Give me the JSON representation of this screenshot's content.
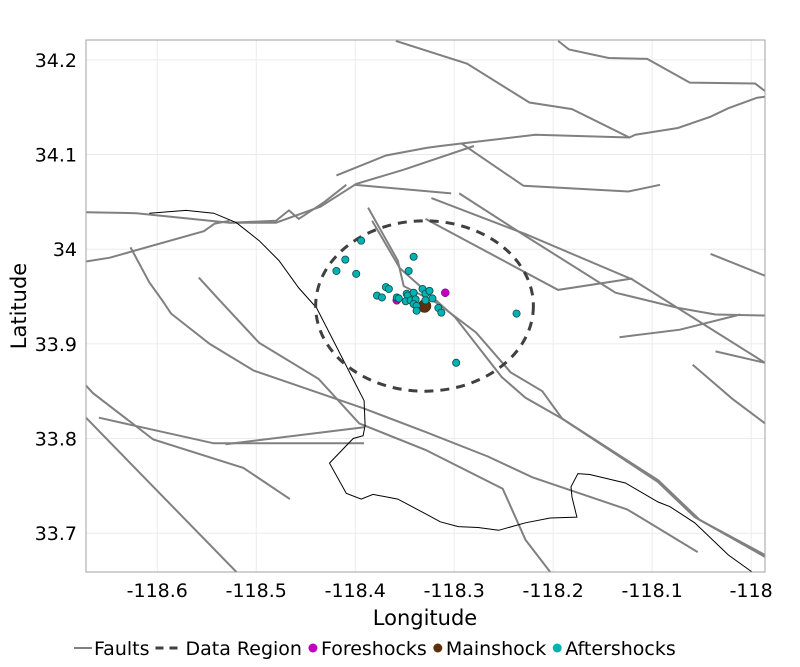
{
  "chart_data": {
    "type": "scatter",
    "xlabel": "Longitude",
    "ylabel": "Latitude",
    "xlim": [
      -118.672,
      -117.986
    ],
    "ylim": [
      33.659,
      34.221
    ],
    "x_ticks": [
      "-118.6",
      "-118.5",
      "-118.4",
      "-118.3",
      "-118.2",
      "-118.1",
      "-118"
    ],
    "x_tick_values": [
      -118.6,
      -118.5,
      -118.4,
      -118.3,
      -118.2,
      -118.1,
      -118.0
    ],
    "y_ticks": [
      "34.2",
      "34.1",
      "34",
      "33.9",
      "33.8",
      "33.7"
    ],
    "y_tick_values": [
      34.2,
      34.1,
      34.0,
      33.9,
      33.8,
      33.7
    ],
    "grid": true,
    "legend_position": "bottom",
    "legend": [
      {
        "label": "Faults",
        "kind": "line",
        "color": "#808080"
      },
      {
        "label": "Data Region",
        "kind": "dashed",
        "color": "#404040"
      },
      {
        "label": "Foreshocks",
        "kind": "point",
        "color": "#bf00bf"
      },
      {
        "label": "Mainshock",
        "kind": "point",
        "color": "#5c300c"
      },
      {
        "label": "Aftershocks",
        "kind": "point",
        "color": "#00b2b2"
      }
    ],
    "faults": [
      [
        [
          -118.359,
          34.22
        ],
        [
          -118.287,
          34.196
        ],
        [
          -118.224,
          34.155
        ],
        [
          -118.181,
          34.148
        ],
        [
          -118.123,
          34.118
        ]
      ],
      [
        [
          -118.195,
          34.22
        ],
        [
          -118.184,
          34.211
        ],
        [
          -118.144,
          34.202
        ],
        [
          -118.105,
          34.201
        ],
        [
          -118.062,
          34.176
        ],
        [
          -117.996,
          34.175
        ],
        [
          -117.986,
          34.167
        ]
      ],
      [
        [
          -118.419,
          34.078
        ],
        [
          -118.369,
          34.099
        ],
        [
          -118.328,
          34.107
        ],
        [
          -118.314,
          34.109
        ],
        [
          -118.218,
          34.121
        ],
        [
          -118.123,
          34.118
        ],
        [
          -118.117,
          34.121
        ],
        [
          -118.074,
          34.128
        ],
        [
          -118.041,
          34.14
        ],
        [
          -118.023,
          34.149
        ],
        [
          -117.994,
          34.16
        ],
        [
          -117.986,
          34.161
        ]
      ],
      [
        [
          -118.351,
          34.084
        ],
        [
          -118.28,
          34.109
        ]
      ],
      [
        [
          -118.293,
          34.112
        ],
        [
          -118.23,
          34.067
        ],
        [
          -118.124,
          34.061
        ],
        [
          -118.092,
          34.068
        ]
      ],
      [
        [
          -118.672,
          34.039
        ],
        [
          -118.621,
          34.038
        ],
        [
          -118.527,
          34.028
        ],
        [
          -118.48,
          34.03
        ],
        [
          -118.467,
          34.041
        ],
        [
          -118.457,
          34.032
        ],
        [
          -118.431,
          34.05
        ],
        [
          -118.409,
          34.068
        ]
      ],
      [
        [
          -118.527,
          34.028
        ],
        [
          -118.48,
          34.028
        ],
        [
          -118.435,
          34.045
        ],
        [
          -118.399,
          34.069
        ],
        [
          -118.351,
          34.084
        ]
      ],
      [
        [
          -118.401,
          34.068
        ],
        [
          -118.303,
          34.059
        ]
      ],
      [
        [
          -118.672,
          33.987
        ],
        [
          -118.648,
          33.991
        ],
        [
          -118.553,
          34.019
        ],
        [
          -118.542,
          34.027
        ],
        [
          -118.527,
          34.03
        ]
      ],
      [
        [
          -118.323,
          34.054
        ],
        [
          -118.228,
          34.016
        ],
        [
          -118.12,
          33.968
        ],
        [
          -117.986,
          33.88
        ]
      ],
      [
        [
          -118.295,
          34.059
        ],
        [
          -118.231,
          34.016
        ],
        [
          -118.137,
          33.954
        ],
        [
          -118.074,
          33.938
        ],
        [
          -118.036,
          33.931
        ],
        [
          -117.986,
          33.93
        ]
      ],
      [
        [
          -118.329,
          34.032
        ],
        [
          -118.195,
          33.957
        ],
        [
          -118.12,
          33.969
        ]
      ],
      [
        [
          -118.041,
          33.995
        ],
        [
          -117.986,
          33.972
        ]
      ],
      [
        [
          -118.133,
          33.907
        ],
        [
          -118.072,
          33.915
        ],
        [
          -118.011,
          33.931
        ]
      ],
      [
        [
          -118.036,
          33.892
        ],
        [
          -117.986,
          33.88
        ]
      ],
      [
        [
          -118.059,
          33.878
        ],
        [
          -118.019,
          33.842
        ],
        [
          -117.986,
          33.816
        ]
      ],
      [
        [
          -118.387,
          34.044
        ],
        [
          -118.357,
          33.988
        ],
        [
          -118.351,
          33.961
        ],
        [
          -118.317,
          33.943
        ],
        [
          -118.278,
          33.912
        ],
        [
          -118.243,
          33.87
        ],
        [
          -118.211,
          33.85
        ],
        [
          -118.191,
          33.821
        ],
        [
          -118.094,
          33.754
        ],
        [
          -118.057,
          33.717
        ],
        [
          -117.986,
          33.675
        ]
      ],
      [
        [
          -118.383,
          34.03
        ],
        [
          -118.355,
          33.98
        ],
        [
          -118.299,
          33.928
        ],
        [
          -118.252,
          33.865
        ],
        [
          -118.228,
          33.843
        ],
        [
          -118.191,
          33.821
        ],
        [
          -118.094,
          33.756
        ],
        [
          -118.052,
          33.714
        ],
        [
          -117.986,
          33.677
        ]
      ],
      [
        [
          -118.627,
          34.002
        ],
        [
          -118.608,
          33.965
        ],
        [
          -118.595,
          33.946
        ],
        [
          -118.586,
          33.932
        ],
        [
          -118.547,
          33.9
        ],
        [
          -118.503,
          33.872
        ],
        [
          -118.392,
          33.832
        ],
        [
          -118.329,
          33.807
        ],
        [
          -118.266,
          33.781
        ],
        [
          -118.221,
          33.759
        ],
        [
          -118.125,
          33.725
        ],
        [
          -118.054,
          33.68
        ]
      ],
      [
        [
          -118.558,
          33.97
        ],
        [
          -118.537,
          33.946
        ],
        [
          -118.497,
          33.901
        ],
        [
          -118.437,
          33.863
        ],
        [
          -118.396,
          33.816
        ],
        [
          -118.329,
          33.788
        ],
        [
          -118.251,
          33.747
        ],
        [
          -118.228,
          33.693
        ],
        [
          -118.203,
          33.659
        ]
      ],
      [
        [
          -118.672,
          33.856
        ],
        [
          -118.665,
          33.848
        ],
        [
          -118.604,
          33.799
        ],
        [
          -118.513,
          33.769
        ],
        [
          -118.466,
          33.736
        ]
      ],
      [
        [
          -118.659,
          33.822
        ],
        [
          -118.543,
          33.795
        ],
        [
          -118.391,
          33.795
        ]
      ],
      [
        [
          -118.531,
          33.794
        ],
        [
          -118.391,
          33.812
        ]
      ],
      [
        [
          -118.672,
          33.822
        ],
        [
          -118.52,
          33.659
        ]
      ]
    ],
    "coastline": [
      [
        -118.608,
        34.038
      ],
      [
        -118.571,
        34.041
      ],
      [
        -118.543,
        34.038
      ],
      [
        -118.52,
        34.028
      ],
      [
        -118.497,
        34.009
      ],
      [
        -118.477,
        33.988
      ],
      [
        -118.457,
        33.959
      ],
      [
        -118.439,
        33.938
      ],
      [
        -118.391,
        33.84
      ],
      [
        -118.39,
        33.814
      ],
      [
        -118.392,
        33.803
      ],
      [
        -118.402,
        33.8
      ],
      [
        -118.426,
        33.774
      ],
      [
        -118.409,
        33.742
      ],
      [
        -118.394,
        33.736
      ],
      [
        -118.382,
        33.741
      ],
      [
        -118.357,
        33.736
      ],
      [
        -118.328,
        33.72
      ],
      [
        -118.314,
        33.712
      ],
      [
        -118.296,
        33.707
      ],
      [
        -118.276,
        33.706
      ],
      [
        -118.255,
        33.703
      ],
      [
        -118.228,
        33.711
      ],
      [
        -118.203,
        33.716
      ],
      [
        -118.176,
        33.717
      ],
      [
        -118.181,
        33.738
      ],
      [
        -118.182,
        33.749
      ],
      [
        -118.175,
        33.763
      ],
      [
        -118.163,
        33.762
      ],
      [
        -118.127,
        33.753
      ],
      [
        -118.094,
        33.733
      ],
      [
        -118.082,
        33.728
      ],
      [
        -118.057,
        33.711
      ],
      [
        -118.023,
        33.677
      ],
      [
        -117.999,
        33.659
      ]
    ],
    "data_region": {
      "center": [
        -118.33,
        33.94
      ],
      "radius_lon": 0.11,
      "radius_lat": 0.09
    },
    "foreshocks": [
      [
        -118.309,
        33.954
      ],
      [
        -118.358,
        33.946
      ]
    ],
    "mainshock": [
      [
        -118.33,
        33.94
      ]
    ],
    "aftershocks": [
      [
        -118.394,
        34.009
      ],
      [
        -118.41,
        33.989
      ],
      [
        -118.419,
        33.977
      ],
      [
        -118.399,
        33.974
      ],
      [
        -118.341,
        33.992
      ],
      [
        -118.346,
        33.977
      ],
      [
        -118.369,
        33.96
      ],
      [
        -118.366,
        33.958
      ],
      [
        -118.378,
        33.951
      ],
      [
        -118.373,
        33.949
      ],
      [
        -118.358,
        33.949
      ],
      [
        -118.356,
        33.948
      ],
      [
        -118.348,
        33.953
      ],
      [
        -118.347,
        33.951
      ],
      [
        -118.341,
        33.954
      ],
      [
        -118.349,
        33.945
      ],
      [
        -118.344,
        33.946
      ],
      [
        -118.339,
        33.947
      ],
      [
        -118.341,
        33.942
      ],
      [
        -118.338,
        33.94
      ],
      [
        -118.338,
        33.935
      ],
      [
        -118.332,
        33.958
      ],
      [
        -118.329,
        33.953
      ],
      [
        -118.325,
        33.956
      ],
      [
        -118.329,
        33.946
      ],
      [
        -118.322,
        33.948
      ],
      [
        -118.316,
        33.938
      ],
      [
        -118.313,
        33.933
      ],
      [
        -118.237,
        33.932
      ],
      [
        -118.298,
        33.88
      ]
    ]
  }
}
